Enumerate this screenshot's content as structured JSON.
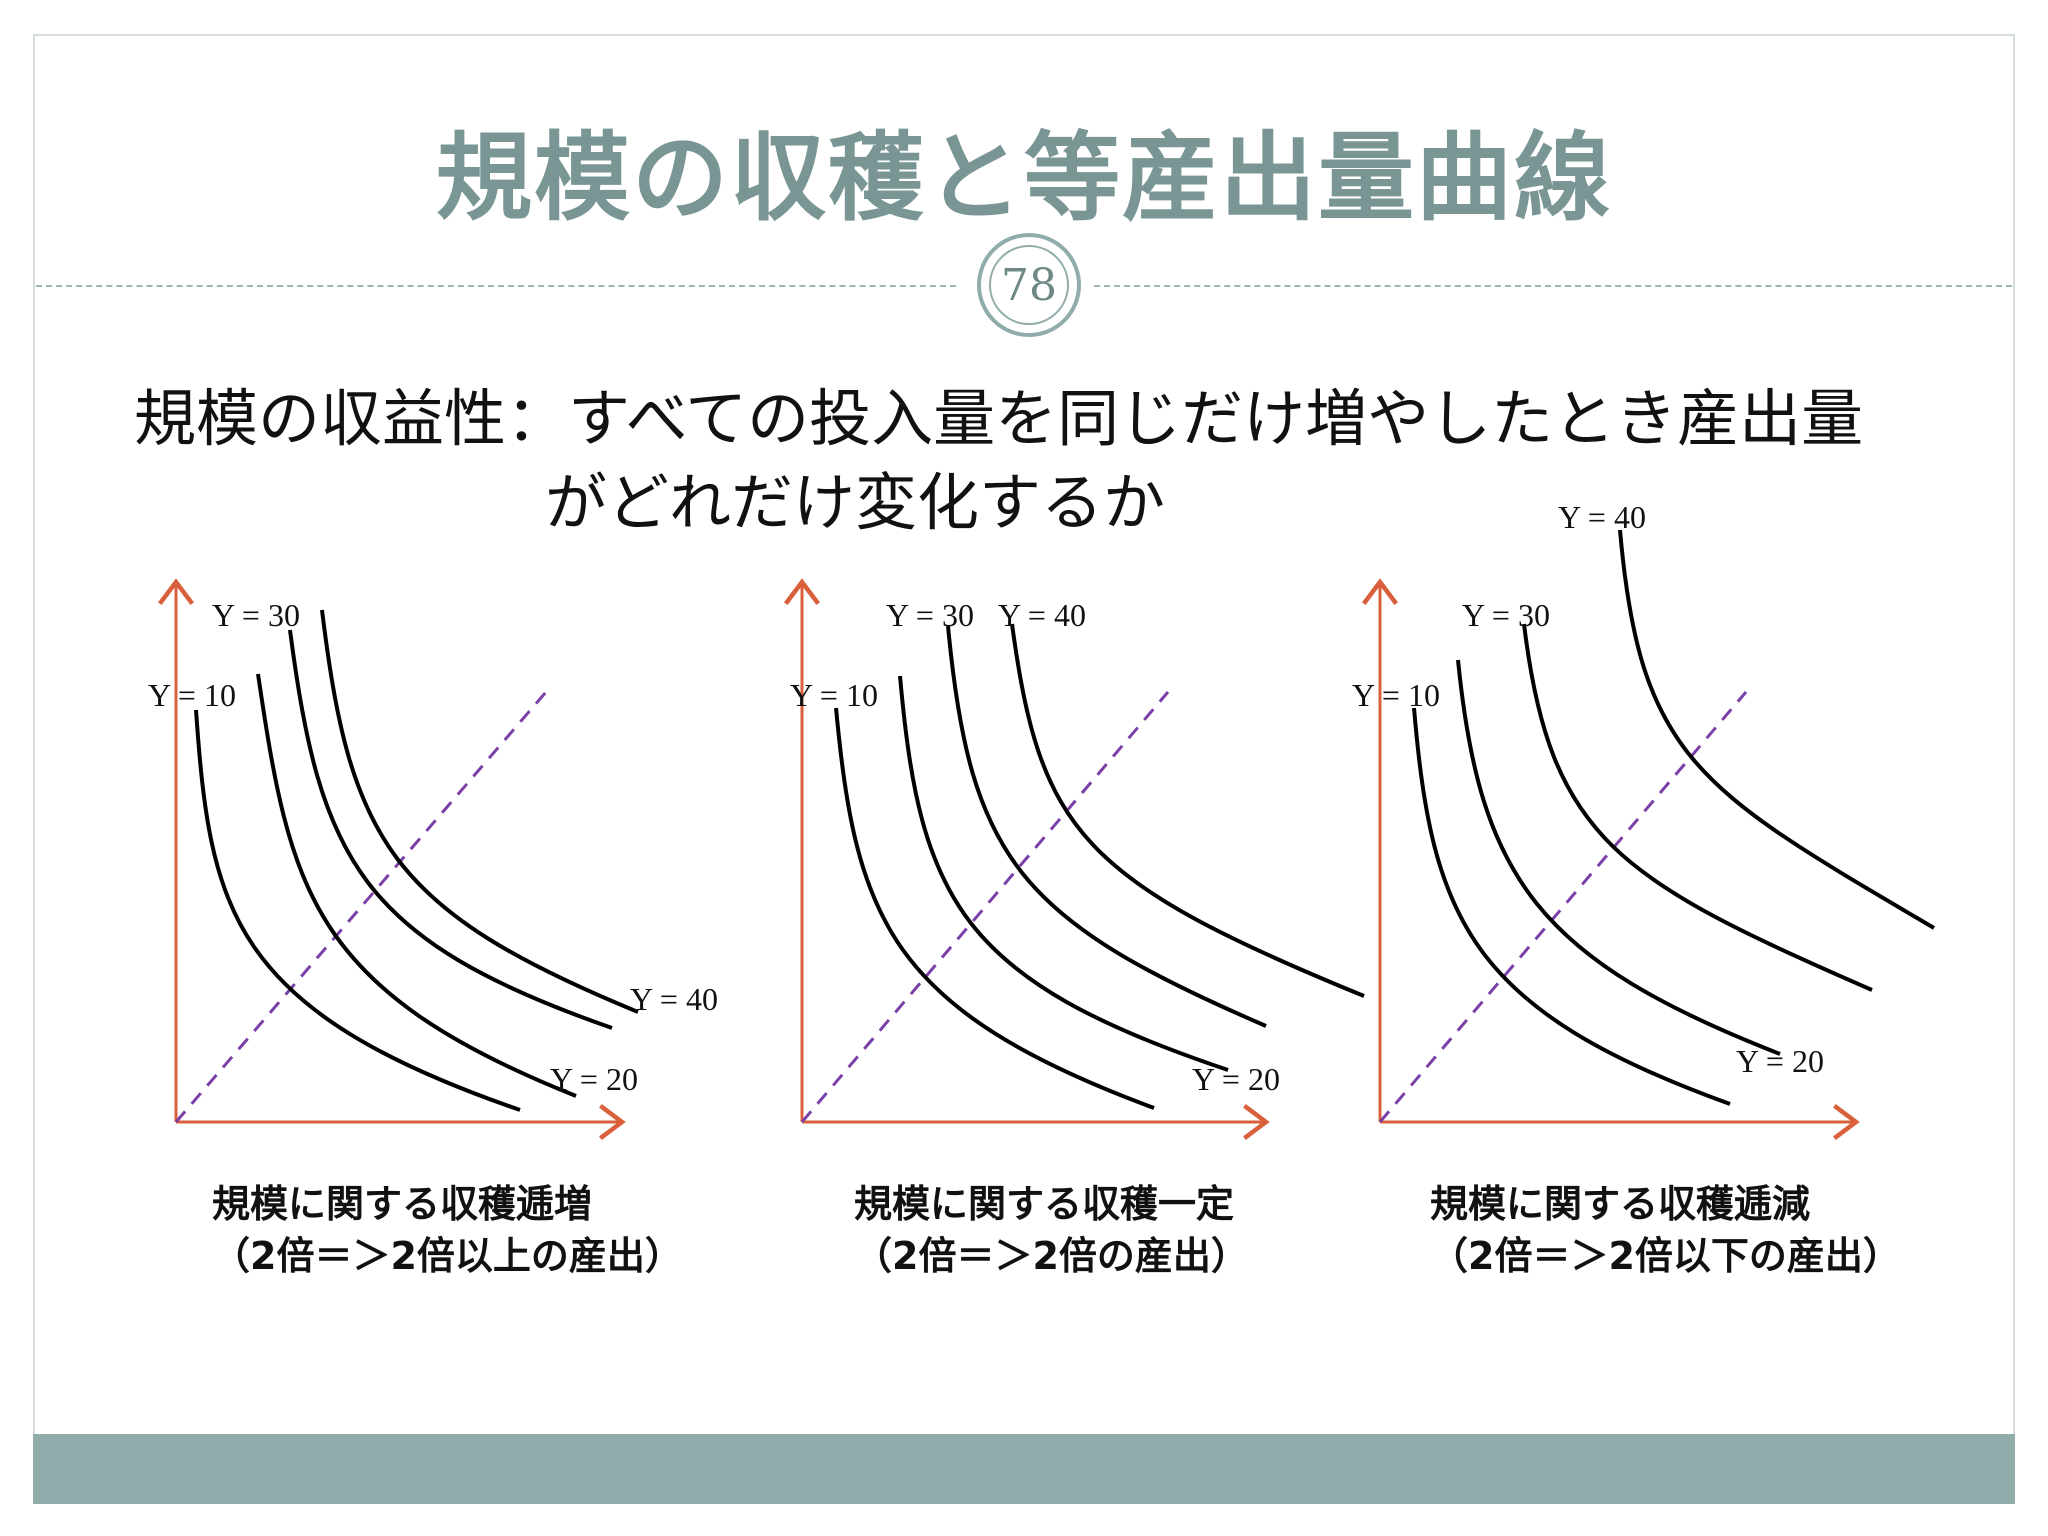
{
  "slide": {
    "title": "規模の収穫と等産出量曲線",
    "page_number": "78",
    "body_line1": "規模の収益性：すべての投入量を同じだけ増やしたとき産出量",
    "body_line2": "がどれだけ変化するか"
  },
  "colors": {
    "title": "#7a9694",
    "accent": "#90acab",
    "axis": "#d9603b",
    "ray": "#7b3fa8",
    "curve": "#000000"
  },
  "panels": [
    {
      "labels": {
        "y10": "Y = 10",
        "y20": "Y = 20",
        "y30": "Y = 30",
        "y40": "Y = 40"
      },
      "caption_line1": "規模に関する収穫逓増",
      "caption_line2": "（2倍＝＞2倍以上の産出）"
    },
    {
      "labels": {
        "y10": "Y = 10",
        "y20": "Y = 20",
        "y30": "Y = 30",
        "y40": "Y = 40"
      },
      "caption_line1": "規模に関する収穫一定",
      "caption_line2": "（2倍＝＞2倍の産出）"
    },
    {
      "labels": {
        "y10": "Y = 10",
        "y20": "Y = 20",
        "y30": "Y = 30",
        "y40": "Y = 40"
      },
      "caption_line1": "規模に関する収穫逓減",
      "caption_line2": "（2倍＝＞2倍以下の産出）"
    }
  ]
}
